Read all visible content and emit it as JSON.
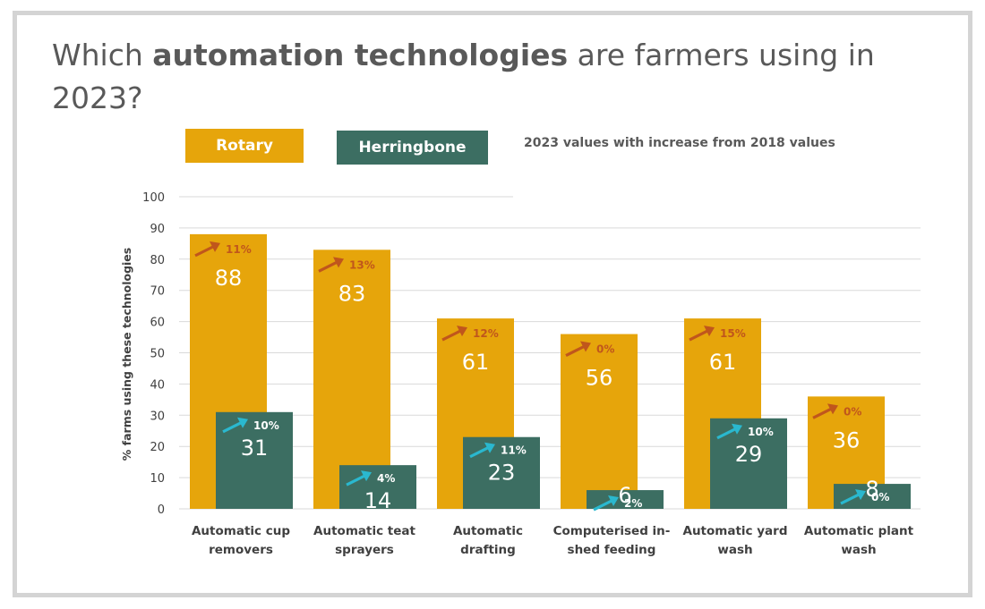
{
  "title": {
    "part1": "Which ",
    "bold": "automation technologies",
    "part2": " are farmers using in 2023?"
  },
  "legend": {
    "rotary": "Rotary",
    "herringbone": "Herringbone"
  },
  "subtitle": "2023 values with increase from 2018 values",
  "colors": {
    "rotary": "#e6a50b",
    "herringbone": "#3c6e62",
    "rotary_arrow": "#c0561c",
    "herringbone_arrow": "#2ab8cf",
    "grid": "#d9d9d9"
  },
  "chart_data": {
    "type": "bar",
    "ylabel": "% farms using these technologies",
    "ylim": [
      0,
      100
    ],
    "yticks": [
      0,
      10,
      20,
      30,
      40,
      50,
      60,
      70,
      80,
      90,
      100
    ],
    "grid": true,
    "legend_position": "top-left",
    "categories": [
      [
        "Automatic cup",
        "removers"
      ],
      [
        "Automatic teat",
        "sprayers"
      ],
      [
        "Automatic",
        "drafting"
      ],
      [
        "Computerised in-",
        "shed feeding"
      ],
      [
        "Automatic yard",
        "wash"
      ],
      [
        "Automatic plant",
        "wash"
      ]
    ],
    "series": [
      {
        "name": "Rotary",
        "values": [
          88,
          83,
          61,
          56,
          61,
          36
        ],
        "increase": [
          "11%",
          "13%",
          "12%",
          "0%",
          "15%",
          "0%"
        ]
      },
      {
        "name": "Herringbone",
        "values": [
          31,
          14,
          23,
          6,
          29,
          8
        ],
        "increase": [
          "10%",
          "4%",
          "11%",
          "2%",
          "10%",
          "0%"
        ]
      }
    ]
  }
}
